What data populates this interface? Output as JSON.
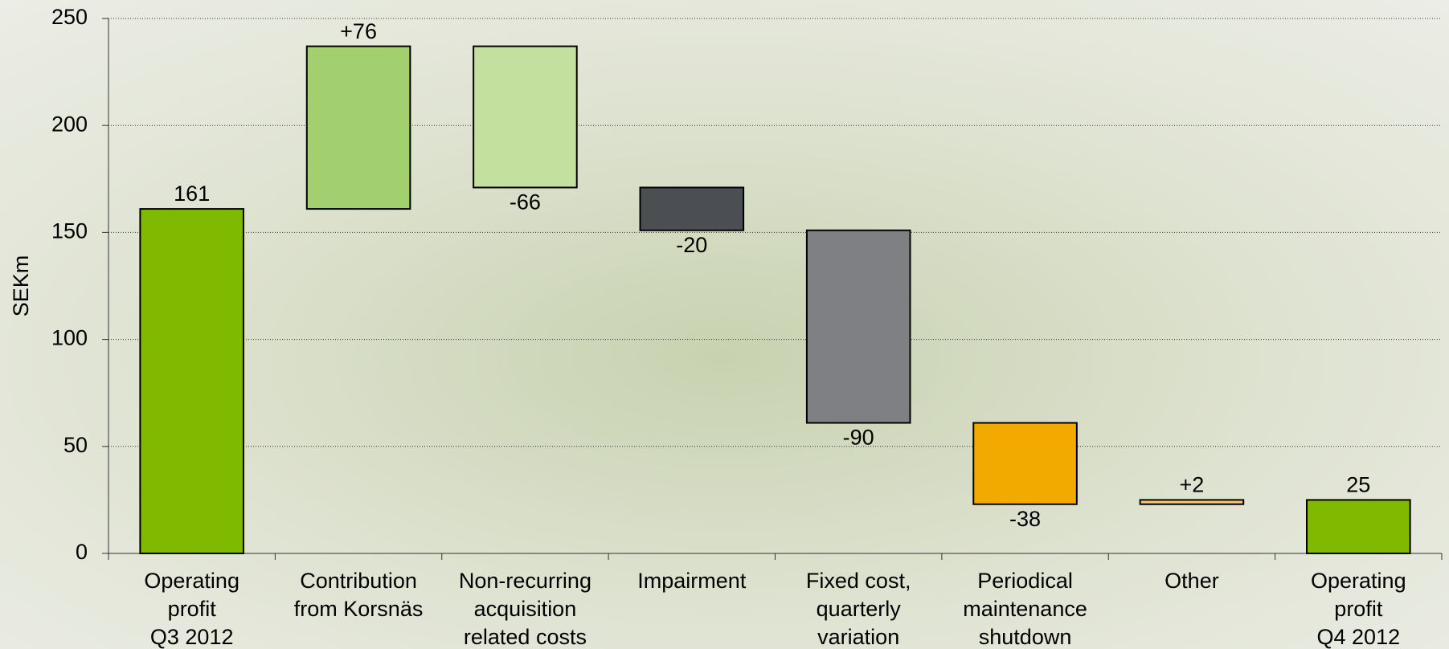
{
  "chart_data": {
    "type": "waterfall",
    "y_label": "SEKm",
    "categories": [
      "Operating\nprofit\nQ3 2012",
      "Contribution\nfrom Korsnäs",
      "Non-recurring\nacquisition\nrelated costs",
      "Impairment",
      "Fixed cost,\nquarterly\nvariation",
      "Periodical\nmaintenance\nshutdown",
      "Other",
      "Operating\nprofit\nQ4 2012"
    ],
    "values": [
      161,
      76,
      -66,
      -20,
      -90,
      -38,
      2,
      25
    ],
    "value_labels": [
      "161",
      "+76",
      "-66",
      "-20",
      "-90",
      "-38",
      "+2",
      "25"
    ],
    "is_total": [
      true,
      false,
      false,
      false,
      false,
      false,
      false,
      true
    ],
    "colors": [
      "#7fba00",
      "#a2d06f",
      "#c3e09f",
      "#4b4e53",
      "#7f8084",
      "#f2a900",
      "#f8c57c",
      "#7fba00"
    ],
    "ylim": [
      0,
      250
    ],
    "yticks": [
      0,
      50,
      100,
      150,
      200,
      250
    ],
    "grid": true
  }
}
